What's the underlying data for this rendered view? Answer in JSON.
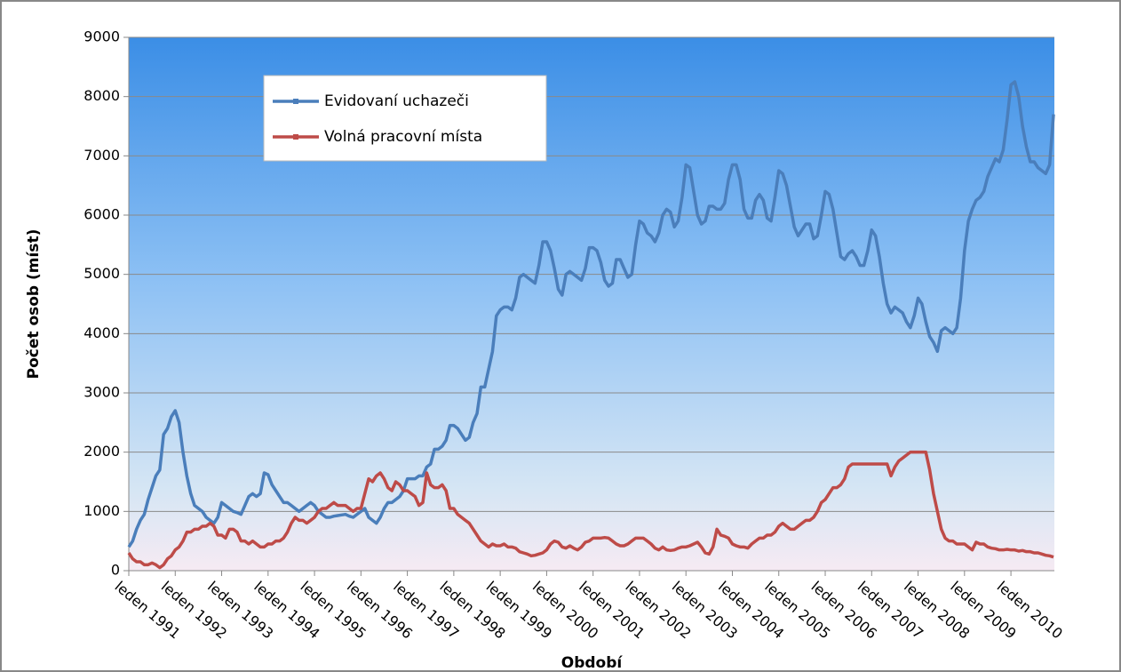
{
  "chart_data": {
    "type": "line",
    "x_label": "Období",
    "y_label": "Počet osob (míst)",
    "ylim": [
      0,
      9000
    ],
    "yticks": [
      0,
      1000,
      2000,
      3000,
      4000,
      5000,
      6000,
      7000,
      8000,
      9000
    ],
    "grid": true,
    "legend": "upper left",
    "categories": [
      "leden 1991",
      null,
      null,
      null,
      null,
      null,
      null,
      null,
      null,
      null,
      null,
      null,
      "leden 1992",
      null,
      null,
      null,
      null,
      null,
      null,
      null,
      null,
      null,
      null,
      null,
      "leden 1993",
      null,
      null,
      null,
      null,
      null,
      null,
      null,
      null,
      null,
      null,
      null,
      "leden 1994",
      null,
      null,
      null,
      null,
      null,
      null,
      null,
      null,
      null,
      null,
      null,
      "leden 1995",
      null,
      null,
      null,
      null,
      null,
      null,
      null,
      null,
      null,
      null,
      null,
      "leden 1996",
      null,
      null,
      null,
      null,
      null,
      null,
      null,
      null,
      null,
      null,
      null,
      "leden 1997",
      null,
      null,
      null,
      null,
      null,
      null,
      null,
      null,
      null,
      null,
      null,
      "leden 1998",
      null,
      null,
      null,
      null,
      null,
      null,
      null,
      null,
      null,
      null,
      null,
      "leden 1999",
      null,
      null,
      null,
      null,
      null,
      null,
      null,
      null,
      null,
      null,
      null,
      "leden 2000",
      null,
      null,
      null,
      null,
      null,
      null,
      null,
      null,
      null,
      null,
      null,
      "leden 2001",
      null,
      null,
      null,
      null,
      null,
      null,
      null,
      null,
      null,
      null,
      null,
      "leden 2002",
      null,
      null,
      null,
      null,
      null,
      null,
      null,
      null,
      null,
      null,
      null,
      "leden 2003",
      null,
      null,
      null,
      null,
      null,
      null,
      null,
      null,
      null,
      null,
      null,
      "leden 2004",
      null,
      null,
      null,
      null,
      null,
      null,
      null,
      null,
      null,
      null,
      null,
      "leden 2005",
      null,
      null,
      null,
      null,
      null,
      null,
      null,
      null,
      null,
      null,
      null,
      "leden 2006",
      null,
      null,
      null,
      null,
      null,
      null,
      null,
      null,
      null,
      null,
      null,
      "leden 2007",
      null,
      null,
      null,
      null,
      null,
      null,
      null,
      null,
      null,
      null,
      null,
      "leden 2008",
      null,
      null,
      null,
      null,
      null,
      null,
      null,
      null,
      null,
      null,
      null,
      "leden 2009",
      null,
      null,
      null,
      null,
      null,
      null,
      null,
      null,
      null,
      null,
      null,
      "leden 2010",
      null,
      null,
      null,
      null,
      null,
      null,
      null,
      null,
      null,
      null,
      null
    ],
    "series": [
      {
        "name": "Evidovaní uchazeči",
        "color": "#4a7ebb",
        "values": [
          400,
          500,
          700,
          850,
          950,
          1200,
          1400,
          1600,
          1700,
          2300,
          2400,
          2600,
          2700,
          2500,
          2000,
          1600,
          1300,
          1100,
          1050,
          1000,
          900,
          850,
          800,
          900,
          1150,
          1100,
          1050,
          1000,
          980,
          950,
          1100,
          1250,
          1300,
          1250,
          1300,
          1650,
          1620,
          1450,
          1350,
          1250,
          1150,
          1150,
          1100,
          1050,
          1000,
          1050,
          1100,
          1150,
          1100,
          1000,
          950,
          900,
          900,
          920,
          930,
          940,
          950,
          920,
          900,
          950,
          1000,
          1050,
          900,
          850,
          800,
          900,
          1050,
          1150,
          1150,
          1200,
          1250,
          1350,
          1550,
          1550,
          1550,
          1600,
          1600,
          1750,
          1800,
          2050,
          2050,
          2100,
          2200,
          2450,
          2450,
          2400,
          2300,
          2200,
          2250,
          2500,
          2650,
          3100,
          3100,
          3400,
          3700,
          4300,
          4400,
          4450,
          4450,
          4400,
          4600,
          4950,
          5000,
          4950,
          4900,
          4850,
          5150,
          5550,
          5550,
          5400,
          5100,
          4750,
          4650,
          5000,
          5050,
          5000,
          4950,
          4900,
          5100,
          5450,
          5450,
          5400,
          5200,
          4900,
          4800,
          4850,
          5250,
          5250,
          5100,
          4950,
          5000,
          5500,
          5900,
          5850,
          5700,
          5650,
          5550,
          5700,
          6000,
          6100,
          6050,
          5800,
          5900,
          6300,
          6850,
          6800,
          6400,
          6000,
          5850,
          5900,
          6150,
          6150,
          6100,
          6100,
          6200,
          6600,
          6850,
          6850,
          6600,
          6100,
          5950,
          5950,
          6250,
          6350,
          6250,
          5950,
          5900,
          6300,
          6750,
          6700,
          6500,
          6150,
          5800,
          5650,
          5750,
          5850,
          5850,
          5600,
          5650,
          6000,
          6400,
          6350,
          6100,
          5700,
          5300,
          5250,
          5350,
          5400,
          5300,
          5150,
          5150,
          5400,
          5750,
          5650,
          5300,
          4850,
          4500,
          4350,
          4450,
          4400,
          4350,
          4200,
          4100,
          4300,
          4600,
          4500,
          4200,
          3950,
          3850,
          3700,
          4050,
          4100,
          4050,
          4000,
          4100,
          4600,
          5400,
          5900,
          6100,
          6250,
          6300,
          6400,
          6650,
          6800,
          6950,
          6900,
          7100,
          7600,
          8200,
          8250,
          8000,
          7500,
          7150,
          6900,
          6900,
          6800,
          6750,
          6700,
          6850,
          7700
        ]
      },
      {
        "name": "Volná pracovní místa",
        "color": "#be4b48",
        "values": [
          300,
          200,
          150,
          150,
          100,
          100,
          130,
          100,
          50,
          100,
          200,
          250,
          350,
          400,
          500,
          650,
          650,
          700,
          700,
          750,
          750,
          800,
          750,
          600,
          600,
          550,
          700,
          700,
          650,
          500,
          500,
          450,
          500,
          450,
          400,
          400,
          450,
          450,
          500,
          500,
          550,
          650,
          800,
          900,
          850,
          850,
          800,
          850,
          900,
          1000,
          1050,
          1050,
          1100,
          1150,
          1100,
          1100,
          1100,
          1050,
          1000,
          1050,
          1050,
          1300,
          1550,
          1500,
          1600,
          1650,
          1550,
          1400,
          1350,
          1500,
          1450,
          1350,
          1350,
          1300,
          1250,
          1100,
          1150,
          1650,
          1450,
          1400,
          1400,
          1450,
          1350,
          1050,
          1050,
          950,
          900,
          850,
          800,
          700,
          600,
          500,
          450,
          400,
          450,
          420,
          420,
          450,
          400,
          400,
          380,
          320,
          300,
          280,
          250,
          260,
          280,
          300,
          350,
          450,
          500,
          480,
          400,
          380,
          420,
          380,
          350,
          400,
          480,
          500,
          550,
          550,
          550,
          560,
          550,
          500,
          450,
          420,
          420,
          450,
          500,
          550,
          550,
          550,
          500,
          450,
          380,
          350,
          400,
          350,
          340,
          350,
          380,
          400,
          400,
          420,
          450,
          480,
          400,
          300,
          280,
          400,
          700,
          600,
          580,
          550,
          450,
          420,
          400,
          400,
          380,
          450,
          500,
          550,
          550,
          600,
          600,
          650,
          750,
          800,
          750,
          700,
          700,
          750,
          800,
          850,
          850,
          900,
          1000,
          1150,
          1200,
          1300,
          1400,
          1400,
          1450,
          1550,
          1750,
          1800,
          1800,
          1800,
          1800,
          1800,
          1800,
          1800,
          1800,
          1800,
          1800,
          1600,
          1750,
          1850,
          1900,
          1950,
          2000,
          2000,
          2000,
          2000,
          2000,
          1700,
          1300,
          1000,
          700,
          550,
          500,
          500,
          450,
          450,
          450,
          400,
          350,
          480,
          450,
          450,
          400,
          380,
          370,
          350,
          350,
          360,
          350,
          350,
          330,
          340,
          320,
          320,
          300,
          300,
          280,
          260,
          250,
          230
        ]
      }
    ]
  }
}
